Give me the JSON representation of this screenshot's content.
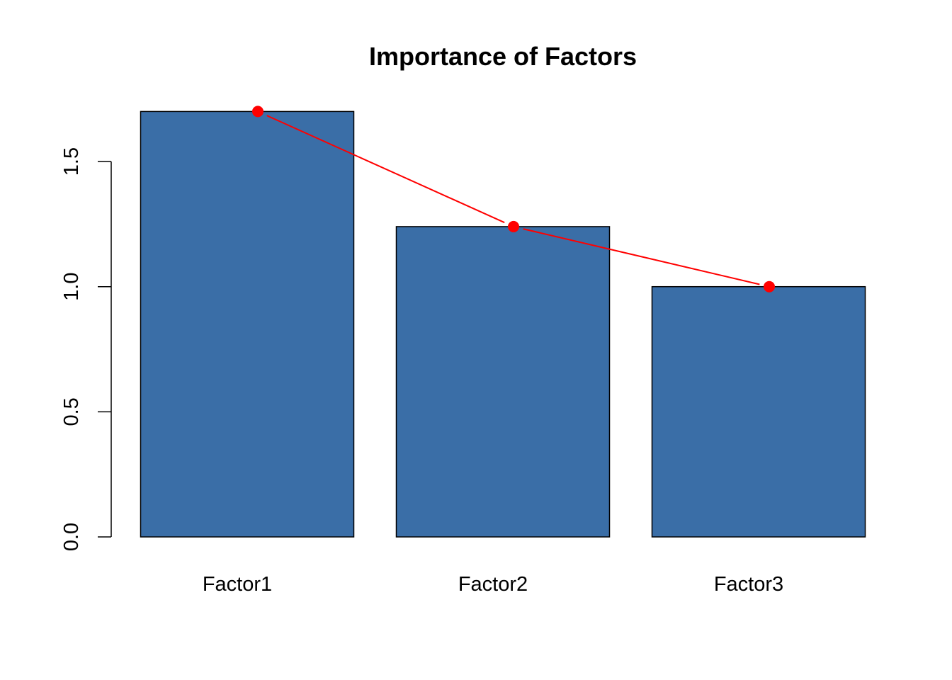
{
  "chart_data": {
    "type": "bar",
    "title": "Importance of Factors",
    "xlabel": "",
    "ylabel": "",
    "categories": [
      "Factor1",
      "Factor2",
      "Factor3"
    ],
    "values": [
      1.7,
      1.24,
      1.0
    ],
    "ylim": [
      0,
      1.7
    ],
    "yticks": [
      0.0,
      0.5,
      1.0,
      1.5
    ],
    "ytick_labels": [
      "0.0",
      "0.5",
      "1.0",
      "1.5"
    ],
    "grid": false,
    "overlay": {
      "type": "line",
      "markers": true,
      "values": [
        1.7,
        1.24,
        1.0
      ]
    },
    "colors": {
      "bar_fill": "#3A6EA7",
      "bar_border": "#000000",
      "line": "#FF0000",
      "marker": "#FF0000"
    }
  }
}
